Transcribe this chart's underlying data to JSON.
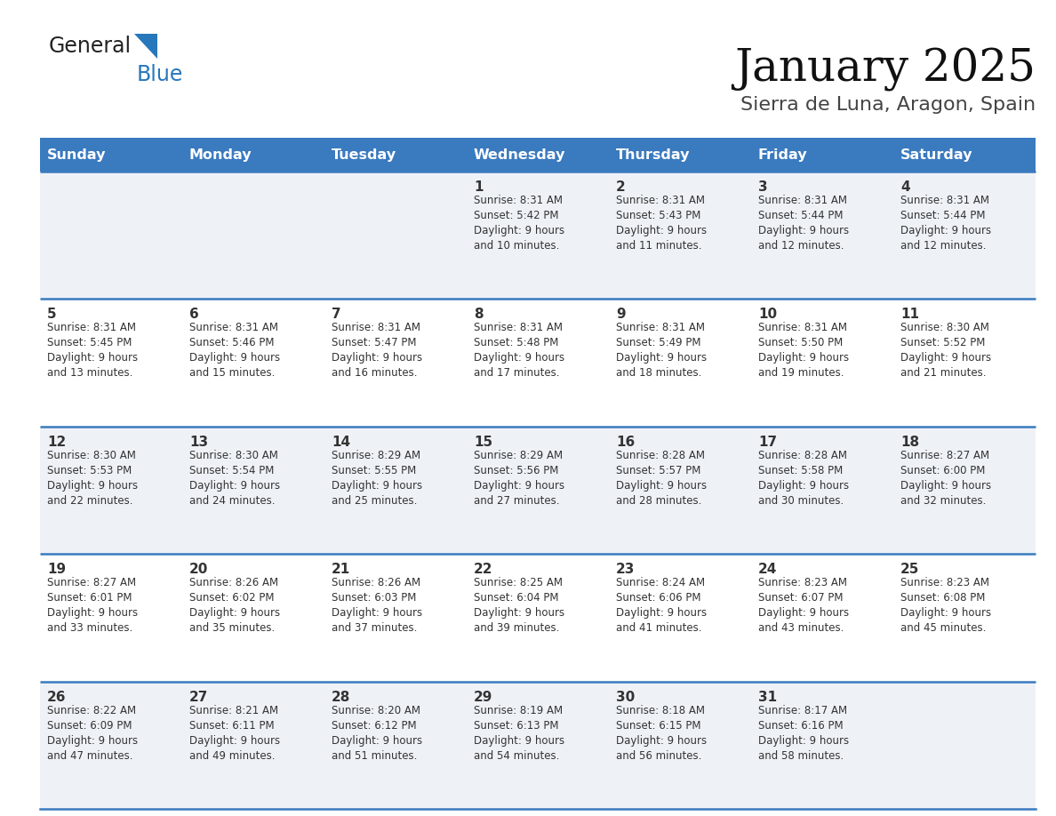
{
  "title": "January 2025",
  "subtitle": "Sierra de Luna, Aragon, Spain",
  "days_of_week": [
    "Sunday",
    "Monday",
    "Tuesday",
    "Wednesday",
    "Thursday",
    "Friday",
    "Saturday"
  ],
  "header_bg": "#3a7abf",
  "header_text_color": "#ffffff",
  "row_bg_odd": "#eef2f7",
  "row_bg_even": "#ffffff",
  "divider_color": "#3a7abf",
  "text_color": "#333333",
  "calendar_data": [
    [
      null,
      null,
      null,
      {
        "day": 1,
        "sunrise": "8:31 AM",
        "sunset": "5:42 PM",
        "daylight": "9 hours\nand 10 minutes."
      },
      {
        "day": 2,
        "sunrise": "8:31 AM",
        "sunset": "5:43 PM",
        "daylight": "9 hours\nand 11 minutes."
      },
      {
        "day": 3,
        "sunrise": "8:31 AM",
        "sunset": "5:44 PM",
        "daylight": "9 hours\nand 12 minutes."
      },
      {
        "day": 4,
        "sunrise": "8:31 AM",
        "sunset": "5:44 PM",
        "daylight": "9 hours\nand 12 minutes."
      }
    ],
    [
      {
        "day": 5,
        "sunrise": "8:31 AM",
        "sunset": "5:45 PM",
        "daylight": "9 hours\nand 13 minutes."
      },
      {
        "day": 6,
        "sunrise": "8:31 AM",
        "sunset": "5:46 PM",
        "daylight": "9 hours\nand 15 minutes."
      },
      {
        "day": 7,
        "sunrise": "8:31 AM",
        "sunset": "5:47 PM",
        "daylight": "9 hours\nand 16 minutes."
      },
      {
        "day": 8,
        "sunrise": "8:31 AM",
        "sunset": "5:48 PM",
        "daylight": "9 hours\nand 17 minutes."
      },
      {
        "day": 9,
        "sunrise": "8:31 AM",
        "sunset": "5:49 PM",
        "daylight": "9 hours\nand 18 minutes."
      },
      {
        "day": 10,
        "sunrise": "8:31 AM",
        "sunset": "5:50 PM",
        "daylight": "9 hours\nand 19 minutes."
      },
      {
        "day": 11,
        "sunrise": "8:30 AM",
        "sunset": "5:52 PM",
        "daylight": "9 hours\nand 21 minutes."
      }
    ],
    [
      {
        "day": 12,
        "sunrise": "8:30 AM",
        "sunset": "5:53 PM",
        "daylight": "9 hours\nand 22 minutes."
      },
      {
        "day": 13,
        "sunrise": "8:30 AM",
        "sunset": "5:54 PM",
        "daylight": "9 hours\nand 24 minutes."
      },
      {
        "day": 14,
        "sunrise": "8:29 AM",
        "sunset": "5:55 PM",
        "daylight": "9 hours\nand 25 minutes."
      },
      {
        "day": 15,
        "sunrise": "8:29 AM",
        "sunset": "5:56 PM",
        "daylight": "9 hours\nand 27 minutes."
      },
      {
        "day": 16,
        "sunrise": "8:28 AM",
        "sunset": "5:57 PM",
        "daylight": "9 hours\nand 28 minutes."
      },
      {
        "day": 17,
        "sunrise": "8:28 AM",
        "sunset": "5:58 PM",
        "daylight": "9 hours\nand 30 minutes."
      },
      {
        "day": 18,
        "sunrise": "8:27 AM",
        "sunset": "6:00 PM",
        "daylight": "9 hours\nand 32 minutes."
      }
    ],
    [
      {
        "day": 19,
        "sunrise": "8:27 AM",
        "sunset": "6:01 PM",
        "daylight": "9 hours\nand 33 minutes."
      },
      {
        "day": 20,
        "sunrise": "8:26 AM",
        "sunset": "6:02 PM",
        "daylight": "9 hours\nand 35 minutes."
      },
      {
        "day": 21,
        "sunrise": "8:26 AM",
        "sunset": "6:03 PM",
        "daylight": "9 hours\nand 37 minutes."
      },
      {
        "day": 22,
        "sunrise": "8:25 AM",
        "sunset": "6:04 PM",
        "daylight": "9 hours\nand 39 minutes."
      },
      {
        "day": 23,
        "sunrise": "8:24 AM",
        "sunset": "6:06 PM",
        "daylight": "9 hours\nand 41 minutes."
      },
      {
        "day": 24,
        "sunrise": "8:23 AM",
        "sunset": "6:07 PM",
        "daylight": "9 hours\nand 43 minutes."
      },
      {
        "day": 25,
        "sunrise": "8:23 AM",
        "sunset": "6:08 PM",
        "daylight": "9 hours\nand 45 minutes."
      }
    ],
    [
      {
        "day": 26,
        "sunrise": "8:22 AM",
        "sunset": "6:09 PM",
        "daylight": "9 hours\nand 47 minutes."
      },
      {
        "day": 27,
        "sunrise": "8:21 AM",
        "sunset": "6:11 PM",
        "daylight": "9 hours\nand 49 minutes."
      },
      {
        "day": 28,
        "sunrise": "8:20 AM",
        "sunset": "6:12 PM",
        "daylight": "9 hours\nand 51 minutes."
      },
      {
        "day": 29,
        "sunrise": "8:19 AM",
        "sunset": "6:13 PM",
        "daylight": "9 hours\nand 54 minutes."
      },
      {
        "day": 30,
        "sunrise": "8:18 AM",
        "sunset": "6:15 PM",
        "daylight": "9 hours\nand 56 minutes."
      },
      {
        "day": 31,
        "sunrise": "8:17 AM",
        "sunset": "6:16 PM",
        "daylight": "9 hours\nand 58 minutes."
      },
      null
    ]
  ],
  "logo_color_general": "#222222",
  "logo_color_blue": "#2777bb",
  "title_fontsize": 36,
  "subtitle_fontsize": 16,
  "header_fontsize": 11.5,
  "day_num_fontsize": 11,
  "cell_text_fontsize": 8.5
}
